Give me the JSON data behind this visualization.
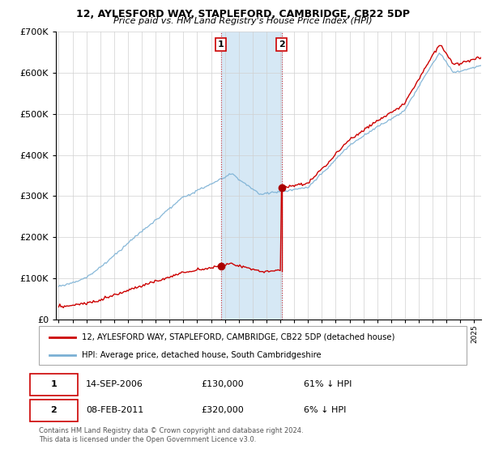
{
  "title1": "12, AYLESFORD WAY, STAPLEFORD, CAMBRIDGE, CB22 5DP",
  "title2": "Price paid vs. HM Land Registry's House Price Index (HPI)",
  "legend_property": "12, AYLESFORD WAY, STAPLEFORD, CAMBRIDGE, CB22 5DP (detached house)",
  "legend_hpi": "HPI: Average price, detached house, South Cambridgeshire",
  "sale1_date": "14-SEP-2006",
  "sale1_price": "£130,000",
  "sale1_pct": "61% ↓ HPI",
  "sale2_date": "08-FEB-2011",
  "sale2_price": "£320,000",
  "sale2_pct": "6% ↓ HPI",
  "footer": "Contains HM Land Registry data © Crown copyright and database right 2024.\nThis data is licensed under the Open Government Licence v3.0.",
  "property_color": "#cc0000",
  "hpi_color": "#7ab0d4",
  "shade_color": "#d6e8f5",
  "marker_color": "#aa0000",
  "sale1_year": 2006.71,
  "sale2_year": 2011.1,
  "sale1_value": 130000,
  "sale2_value": 320000,
  "ylim_min": 0,
  "ylim_max": 700000,
  "xlim_start": 1994.8,
  "xlim_end": 2025.5
}
